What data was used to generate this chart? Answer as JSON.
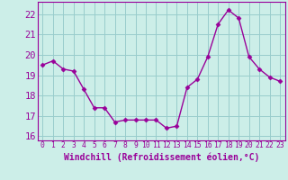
{
  "x": [
    0,
    1,
    2,
    3,
    4,
    5,
    6,
    7,
    8,
    9,
    10,
    11,
    12,
    13,
    14,
    15,
    16,
    17,
    18,
    19,
    20,
    21,
    22,
    23
  ],
  "y": [
    19.5,
    19.7,
    19.3,
    19.2,
    18.3,
    17.4,
    17.4,
    16.7,
    16.8,
    16.8,
    16.8,
    16.8,
    16.4,
    16.5,
    18.4,
    18.8,
    19.9,
    21.5,
    22.2,
    21.8,
    19.9,
    19.3,
    18.9,
    18.7
  ],
  "line_color": "#990099",
  "marker": "D",
  "marker_size": 2.5,
  "bg_color": "#cceee8",
  "grid_color": "#99cccc",
  "xlabel": "Windchill (Refroidissement éolien,°C)",
  "ylim": [
    15.8,
    22.6
  ],
  "xlim": [
    -0.5,
    23.5
  ],
  "yticks": [
    16,
    17,
    18,
    19,
    20,
    21,
    22
  ],
  "xtick_labels": [
    "0",
    "1",
    "2",
    "3",
    "4",
    "5",
    "6",
    "7",
    "8",
    "9",
    "10",
    "11",
    "12",
    "13",
    "14",
    "15",
    "16",
    "17",
    "18",
    "19",
    "20",
    "21",
    "22",
    "23"
  ],
  "xlabel_fontsize": 7.0,
  "ytick_fontsize": 7.5,
  "xtick_fontsize": 5.8,
  "line_width": 1.0
}
